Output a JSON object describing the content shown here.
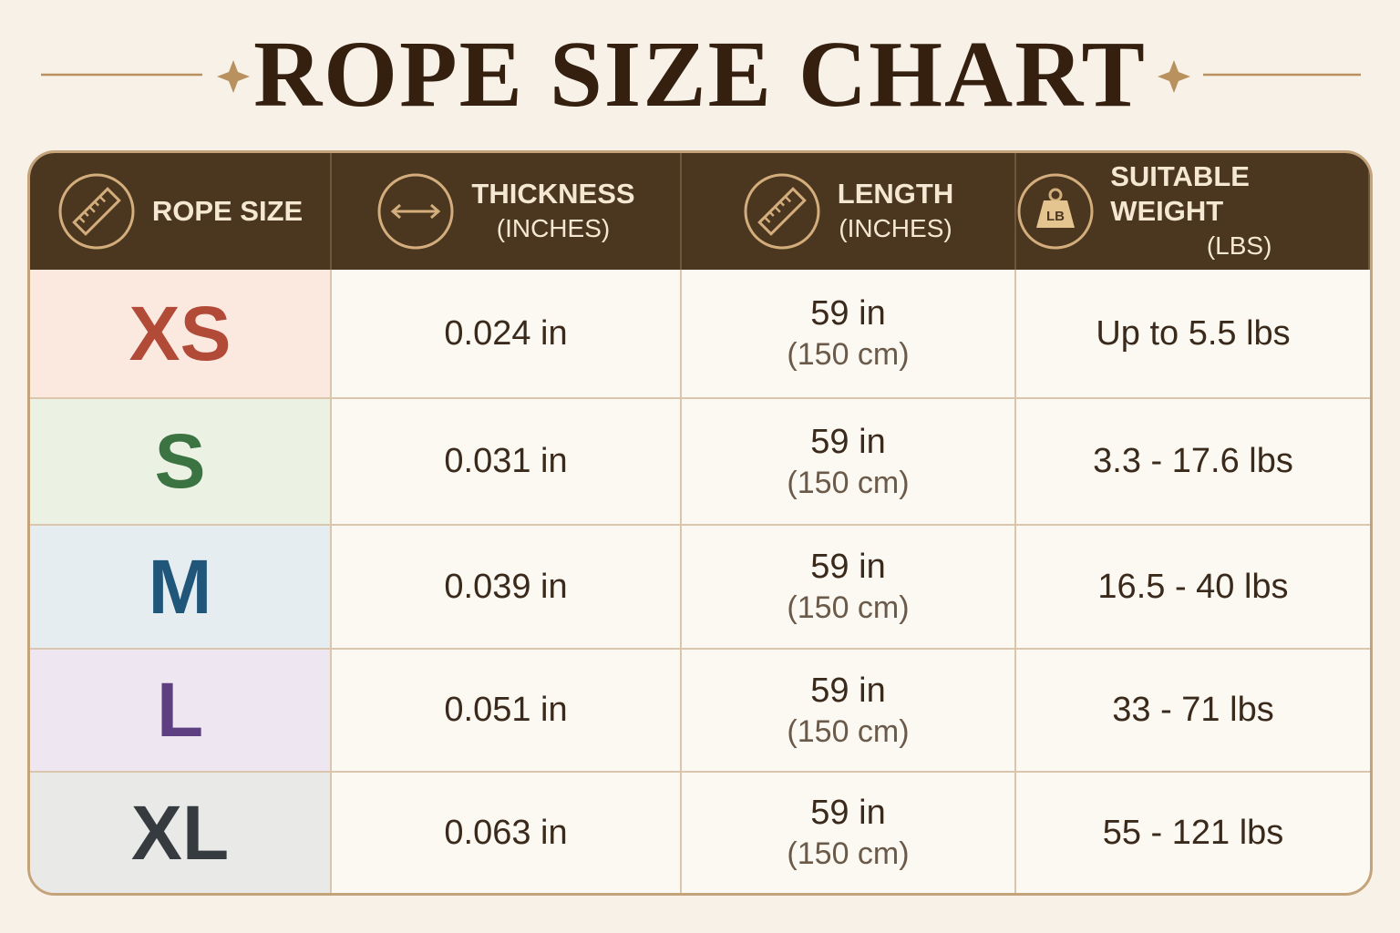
{
  "title": "ROPE SIZE CHART",
  "table": {
    "headers": [
      {
        "label": "ROPE SIZE"
      },
      {
        "label": "THICKNESS",
        "sub": "(INCHES)"
      },
      {
        "label": "LENGTH",
        "sub": "(INCHES)"
      },
      {
        "label": "SUITABLE WEIGHT",
        "sub": "(LBS)"
      }
    ],
    "weight_icon": "LB",
    "rows": [
      {
        "size": "XS",
        "thickness": "0.024 in",
        "length": "59 in",
        "length_cm": "(150 cm)",
        "weight": "Up to 5.5 lbs"
      },
      {
        "size": "S",
        "thickness": "0.031 in",
        "length": "59 in",
        "length_cm": "(150 cm)",
        "weight": "3.3 - 17.6 lbs"
      },
      {
        "size": "M",
        "thickness": "0.039 in",
        "length": "59 in",
        "length_cm": "(150 cm)",
        "weight": "16.5 - 40 lbs"
      },
      {
        "size": "L",
        "thickness": "0.051 in",
        "length": "59 in",
        "length_cm": "(150 cm)",
        "weight": "33 - 71 lbs"
      },
      {
        "size": "XL",
        "thickness": "0.063 in",
        "length": "59 in",
        "length_cm": "(150 cm)",
        "weight": "55 - 121 lbs"
      }
    ]
  }
}
